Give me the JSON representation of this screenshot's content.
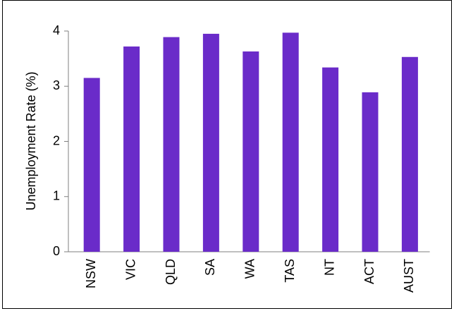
{
  "chart_data": {
    "type": "bar",
    "y_label": "Unemployment Rate (%)",
    "categories": [
      "NSW",
      "VIC",
      "QLD",
      "SA",
      "WA",
      "TAS",
      "NT",
      "ACT",
      "AUST"
    ],
    "values": [
      3.15,
      3.72,
      3.89,
      3.95,
      3.63,
      3.97,
      3.34,
      2.89,
      3.53
    ],
    "color": "#6a2bc9",
    "ylim": [
      0,
      4
    ],
    "yticks": [
      0,
      1,
      2,
      3,
      4
    ],
    "grid": false
  }
}
